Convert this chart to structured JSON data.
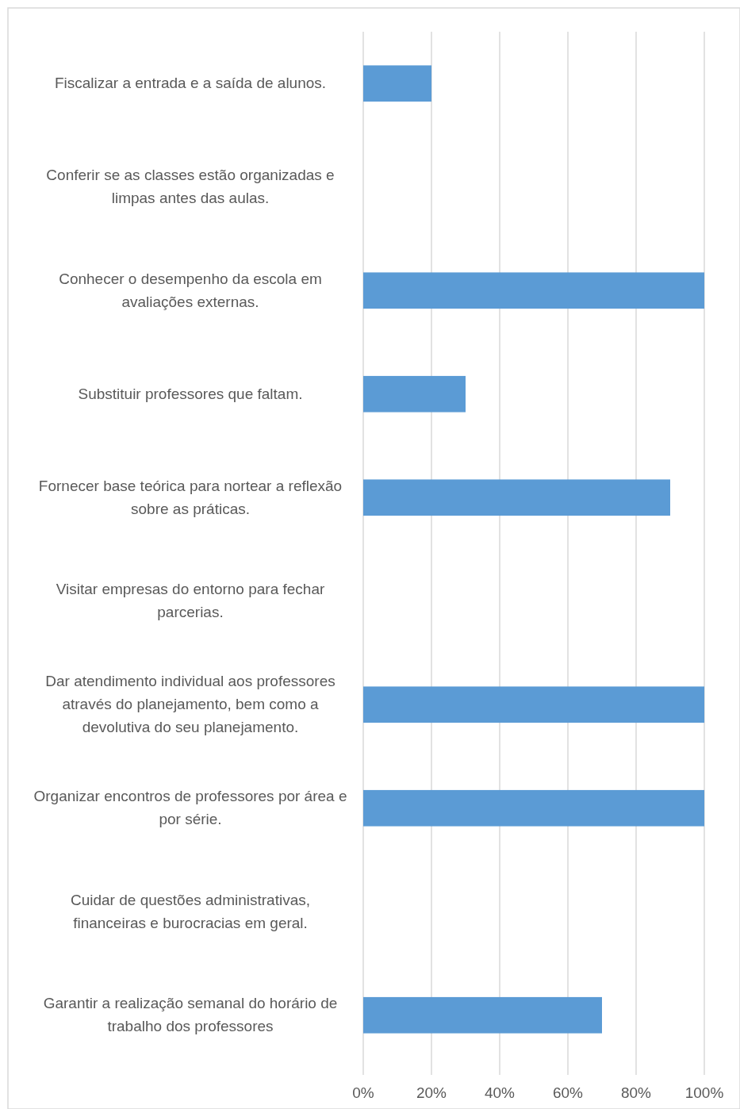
{
  "chart_data": {
    "type": "bar",
    "orientation": "horizontal",
    "categories": [
      "Fiscalizar a entrada e a saída de alunos.",
      "Conferir se as classes estão organizadas e limpas antes das aulas.",
      "Conhecer o desempenho da escola em avaliações externas.",
      "Substituir professores que faltam.",
      "Fornecer base teórica para nortear a reflexão sobre as práticas.",
      "Visitar empresas do entorno para fechar parcerias.",
      "Dar atendimento individual aos professores através do planejamento, bem como a devolutiva do seu planejamento.",
      "Organizar encontros de professores por área e por série.",
      "Cuidar de questões administrativas, financeiras e burocracias em geral.",
      "Garantir a realização semanal do horário de trabalho dos professores"
    ],
    "values": [
      20,
      0,
      100,
      30,
      90,
      0,
      100,
      100,
      0,
      70
    ],
    "color": "#5b9bd5",
    "xlim": [
      0,
      100
    ],
    "xticks": [
      {
        "value": 0,
        "label": "0%"
      },
      {
        "value": 20,
        "label": "20%"
      },
      {
        "value": 40,
        "label": "40%"
      },
      {
        "value": 60,
        "label": "60%"
      },
      {
        "value": 80,
        "label": "80%"
      },
      {
        "value": 100,
        "label": "100%"
      }
    ],
    "grid": "x"
  }
}
